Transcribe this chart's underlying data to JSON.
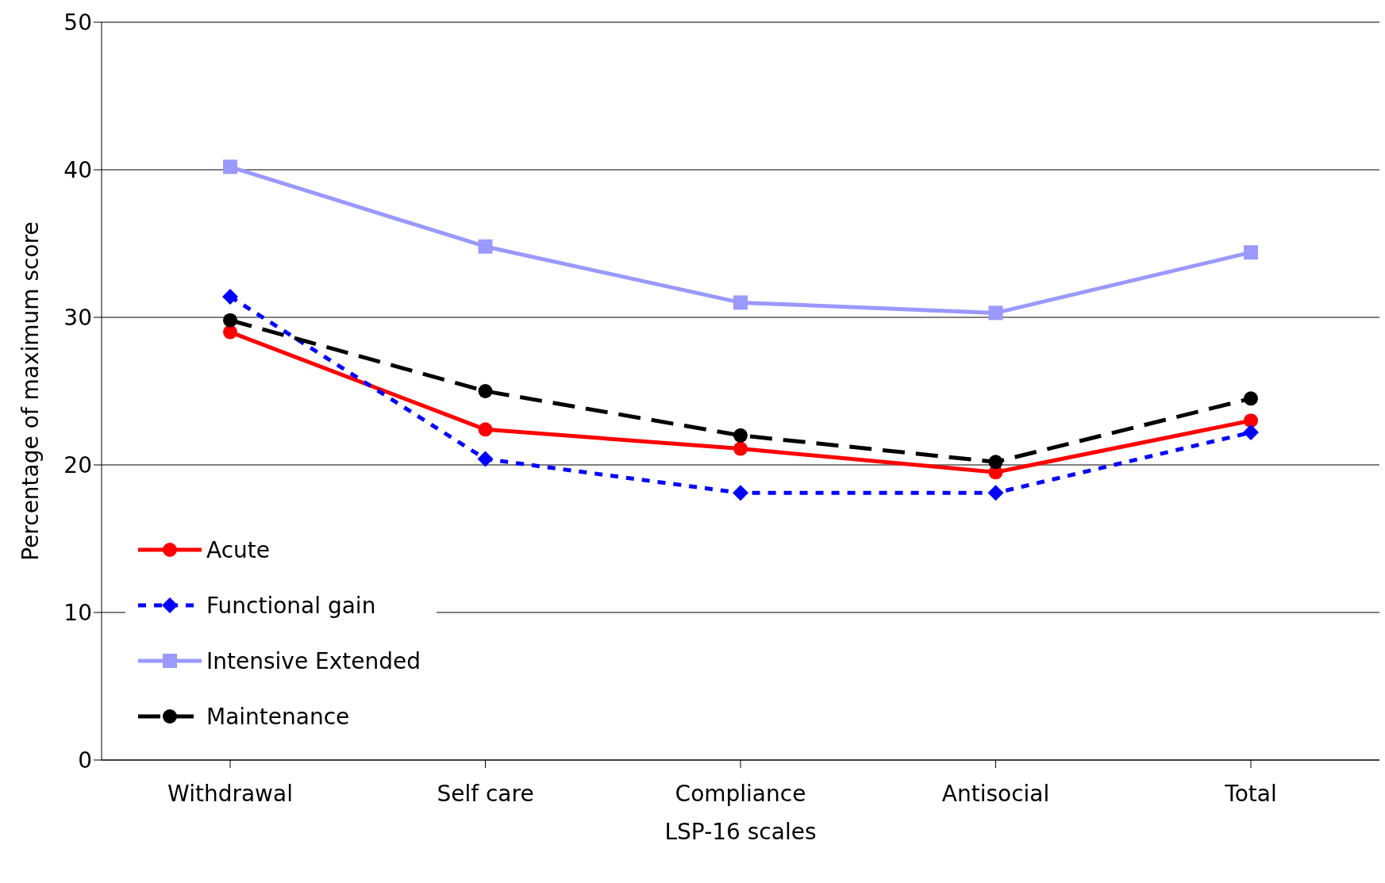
{
  "chart_data": {
    "type": "line",
    "xlabel": "LSP-16 scales",
    "ylabel": "Percentage of maximum score",
    "categories": [
      "Withdrawal",
      "Self care",
      "Compliance",
      "Antisocial",
      "Total"
    ],
    "ylim": [
      0,
      50
    ],
    "yticks": [
      0,
      10,
      20,
      30,
      40,
      50
    ],
    "grid": "y",
    "legend": "bottom left",
    "series": [
      {
        "name": "Acute",
        "color": "#ff0000",
        "marker": "circle",
        "line_style": "solid",
        "values": [
          29.0,
          22.4,
          21.1,
          19.5,
          23.0
        ]
      },
      {
        "name": "Functional gain",
        "color": "#0000ff",
        "marker": "diamond",
        "line_style": "dotted",
        "values": [
          31.4,
          20.4,
          18.1,
          18.1,
          22.2
        ]
      },
      {
        "name": "Intensive Extended",
        "color": "#9999ff",
        "marker": "square",
        "line_style": "solid",
        "values": [
          40.2,
          34.8,
          31.0,
          30.3,
          34.4
        ]
      },
      {
        "name": "Maintenance",
        "color": "#000000",
        "marker": "circle",
        "line_style": "dashed",
        "values": [
          29.8,
          25.0,
          22.0,
          20.2,
          24.5
        ]
      }
    ]
  }
}
